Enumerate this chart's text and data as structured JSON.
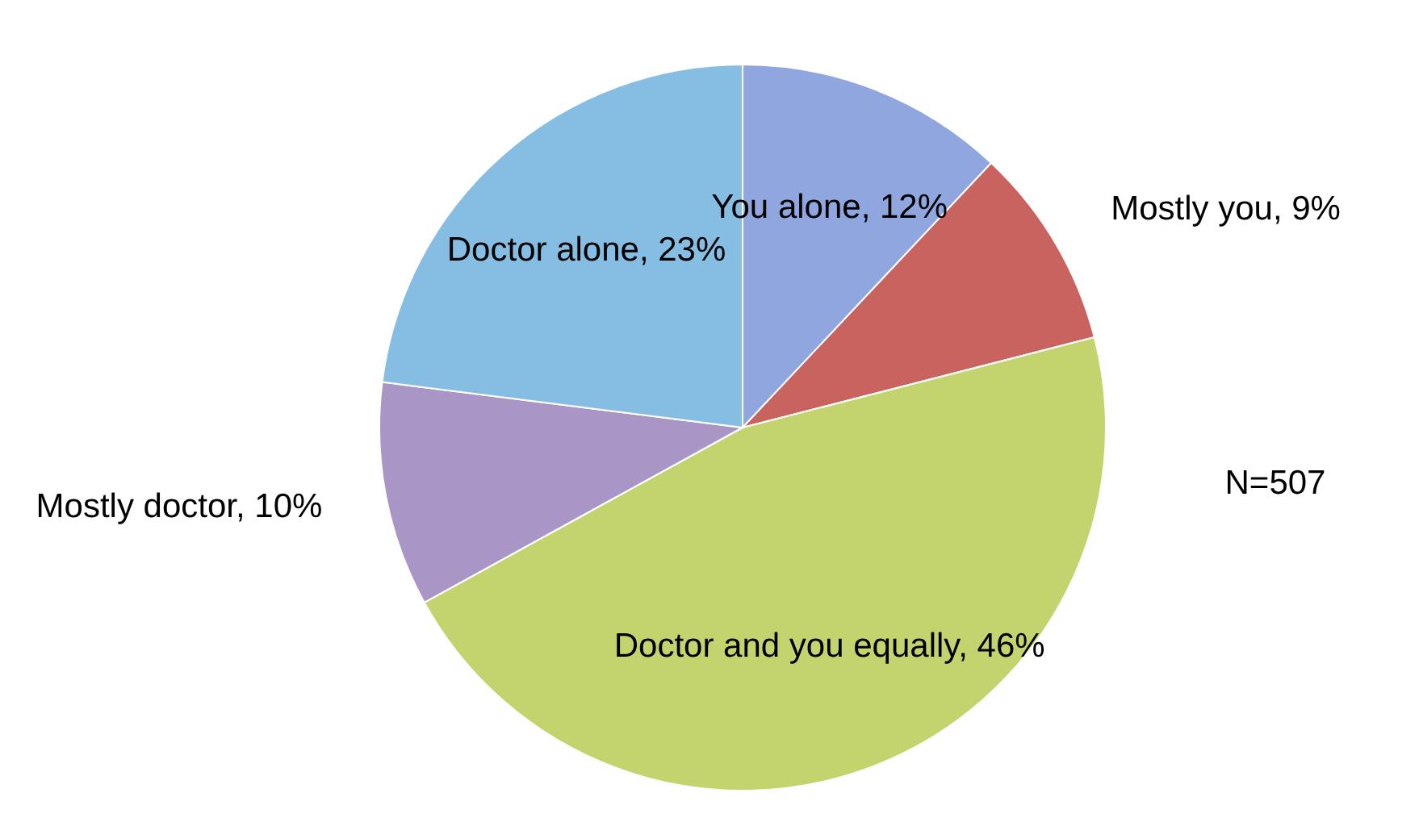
{
  "chart_data": {
    "type": "pie",
    "categories": [
      "You alone",
      "Mostly you",
      "Doctor and you equally",
      "Mostly doctor",
      "Doctor alone"
    ],
    "values": [
      12,
      9,
      46,
      10,
      23
    ],
    "value_labels": [
      "12%",
      "9%",
      "46%",
      "10%",
      "23%"
    ],
    "colors": [
      "#8fa6df",
      "#c9635f",
      "#c3d46e",
      "#a996c6",
      "#86bde3"
    ],
    "annotations": [
      "N=507"
    ]
  }
}
